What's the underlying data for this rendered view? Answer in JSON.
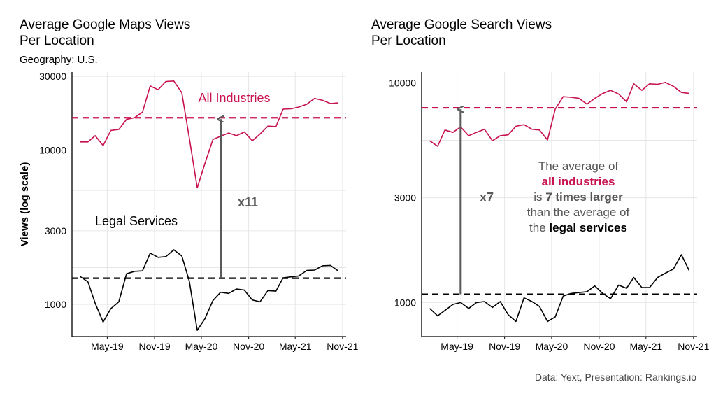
{
  "caption": "Data: Yext, Presentation: Rankings.io",
  "colors": {
    "all": "#c8114f",
    "legal": "#000000",
    "arrow": "#5a5a5a",
    "grid": "#e6e6e6"
  },
  "chart_data": [
    {
      "type": "line",
      "title": "Average Google Maps Views\nPer Location",
      "subtitle": "Geography: U.S.",
      "ylabel": "Views (log scale)",
      "yscale": "log",
      "ylim": [
        620,
        32000
      ],
      "xlim": [
        "2018-12-15",
        "2021-11-15"
      ],
      "x_ticks": [
        "May-19",
        "Nov-19",
        "May-20",
        "Nov-20",
        "May-21",
        "Nov-21"
      ],
      "y_ticks": [
        "1000",
        "3000",
        "10000",
        "30000"
      ],
      "x": [
        "2019-01",
        "2019-02",
        "2019-03",
        "2019-04",
        "2019-05",
        "2019-06",
        "2019-07",
        "2019-08",
        "2019-09",
        "2019-10",
        "2019-11",
        "2019-12",
        "2020-01",
        "2020-02",
        "2020-03",
        "2020-04",
        "2020-05",
        "2020-06",
        "2020-07",
        "2020-08",
        "2020-09",
        "2020-10",
        "2020-11",
        "2020-12",
        "2021-01",
        "2021-02",
        "2021-03",
        "2021-04",
        "2021-05",
        "2021-06",
        "2021-07",
        "2021-08",
        "2021-09",
        "2021-10"
      ],
      "series": [
        {
          "name": "All Industries",
          "values": [
            11300,
            11300,
            12400,
            10700,
            13400,
            13600,
            15800,
            16200,
            17600,
            26000,
            24600,
            27800,
            28000,
            23500,
            12000,
            5700,
            8200,
            11700,
            12300,
            12900,
            12400,
            13100,
            11500,
            12700,
            14300,
            14200,
            18400,
            18500,
            19000,
            19800,
            21600,
            21000,
            20000,
            20200
          ],
          "mean": 16200
        },
        {
          "name": "Legal Services",
          "values": [
            1520,
            1400,
            1020,
            770,
            940,
            1040,
            1580,
            1640,
            1650,
            2150,
            2020,
            2040,
            2260,
            2060,
            1420,
            680,
            810,
            1060,
            1200,
            1180,
            1260,
            1240,
            1070,
            1040,
            1230,
            1220,
            1490,
            1510,
            1530,
            1660,
            1670,
            1780,
            1790,
            1650
          ],
          "mean": 1480
        }
      ],
      "labels": {
        "all": "All Industries",
        "legal": "Legal Services",
        "ratio": "x11"
      },
      "arrow_at": "2020-07"
    },
    {
      "type": "line",
      "title": "Average Google Search Views\nPer Location",
      "yscale": "log",
      "ylim": [
        700,
        11200
      ],
      "xlim": [
        "2018-12-15",
        "2021-11-15"
      ],
      "x_ticks": [
        "May-19",
        "Nov-19",
        "May-20",
        "Nov-20",
        "May-21",
        "Nov-21"
      ],
      "y_ticks": [
        "1000",
        "3000",
        "10000"
      ],
      "x": [
        "2019-01",
        "2019-02",
        "2019-03",
        "2019-04",
        "2019-05",
        "2019-06",
        "2019-07",
        "2019-08",
        "2019-09",
        "2019-10",
        "2019-11",
        "2019-12",
        "2020-01",
        "2020-02",
        "2020-03",
        "2020-04",
        "2020-05",
        "2020-06",
        "2020-07",
        "2020-08",
        "2020-09",
        "2020-10",
        "2020-11",
        "2020-12",
        "2021-01",
        "2021-02",
        "2021-03",
        "2021-04",
        "2021-05",
        "2021-06",
        "2021-07",
        "2021-08",
        "2021-09",
        "2021-10"
      ],
      "series": [
        {
          "name": "all industries",
          "values": [
            5450,
            5150,
            6100,
            5950,
            6300,
            5750,
            5950,
            6150,
            5450,
            5750,
            5800,
            6350,
            6450,
            6150,
            6100,
            5500,
            7600,
            8650,
            8600,
            8500,
            8000,
            8500,
            8950,
            9250,
            8900,
            8200,
            9900,
            9250,
            9900,
            9850,
            10050,
            9650,
            9050,
            8950
          ],
          "mean": 7700
        },
        {
          "name": "legal services",
          "values": [
            940,
            870,
            920,
            980,
            1000,
            940,
            1000,
            1010,
            950,
            1010,
            880,
            820,
            1050,
            1010,
            960,
            820,
            860,
            1070,
            1100,
            1110,
            1120,
            1190,
            1100,
            1040,
            1200,
            1160,
            1300,
            1170,
            1170,
            1300,
            1360,
            1420,
            1650,
            1400
          ],
          "mean": 1090
        }
      ],
      "labels": {
        "ratio": "x7"
      },
      "annotation": {
        "l1": "The average of",
        "l2": "all industries",
        "l3a": "is ",
        "l3b": "7 times larger",
        "l4": "than the average of",
        "l5a": "the ",
        "l5b": "legal services"
      },
      "arrow_at": "2019-05"
    }
  ]
}
